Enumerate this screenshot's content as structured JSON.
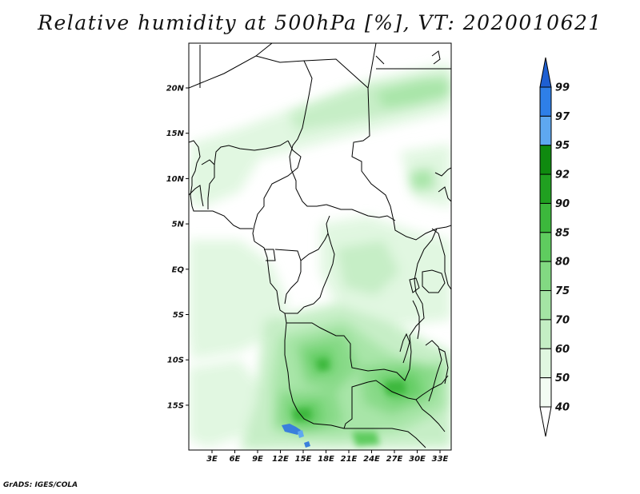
{
  "title": "Relative humidity at 500hPa [%], VT: 2020010621",
  "credit": "GrADS: IGES/COLA",
  "axes": {
    "lon_ticks": [
      "3E",
      "6E",
      "9E",
      "12E",
      "15E",
      "18E",
      "21E",
      "24E",
      "27E",
      "30E",
      "33E"
    ],
    "lat_ticks": [
      "20N",
      "15N",
      "10N",
      "5N",
      "EQ",
      "5S",
      "10S",
      "15S"
    ]
  },
  "colorbar": {
    "levels": [
      "99",
      "97",
      "95",
      "92",
      "90",
      "85",
      "80",
      "75",
      "70",
      "60",
      "50",
      "40"
    ],
    "colors": [
      "#1e5fd2",
      "#2e7fe8",
      "#5ea8f0",
      "#0f8a0f",
      "#20a020",
      "#3cb83c",
      "#5fcc5f",
      "#82d982",
      "#a4e4a4",
      "#c4eec4",
      "#e0f7e0",
      "#f3fcf3"
    ]
  }
}
